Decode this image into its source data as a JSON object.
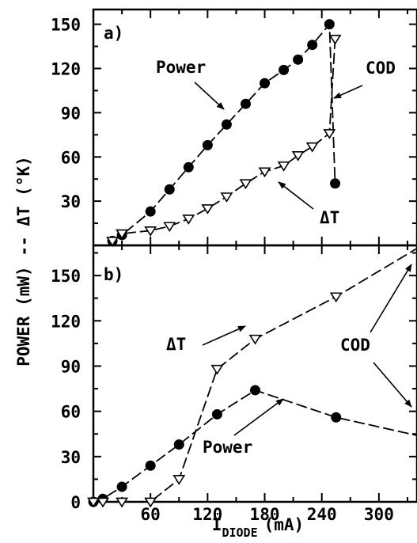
{
  "chart_data": [
    {
      "panel_label": "a)",
      "type": "line",
      "ylim": [
        0,
        160
      ],
      "xlim": [
        0,
        340
      ],
      "yticks": [
        30,
        60,
        90,
        120,
        150
      ],
      "series": [
        {
          "name": "Power",
          "marker": "filled-circle",
          "x": [
            20,
            30,
            60,
            80,
            100,
            120,
            140,
            160,
            180,
            200,
            215,
            230,
            248,
            254
          ],
          "y": [
            3,
            7,
            23,
            38,
            53,
            68,
            82,
            96,
            110,
            119,
            126,
            136,
            150,
            42
          ]
        },
        {
          "name": "ΔT",
          "marker": "open-triangle",
          "x": [
            20,
            30,
            60,
            80,
            100,
            120,
            140,
            160,
            180,
            200,
            215,
            230,
            248,
            254
          ],
          "y": [
            3,
            8,
            10,
            13,
            18,
            25,
            33,
            42,
            50,
            54,
            61,
            67,
            76,
            140
          ]
        }
      ],
      "annotations": [
        "Power",
        "COD",
        "ΔT"
      ]
    },
    {
      "panel_label": "b)",
      "type": "line",
      "ylim": [
        0,
        170
      ],
      "xlim": [
        0,
        340
      ],
      "yticks": [
        0,
        30,
        60,
        90,
        120,
        150
      ],
      "xticks": [
        60,
        120,
        180,
        240,
        300
      ],
      "series": [
        {
          "name": "Power",
          "marker": "filled-circle",
          "x": [
            0,
            10,
            30,
            60,
            90,
            130,
            170,
            255,
            340
          ],
          "y": [
            0,
            2,
            10,
            24,
            38,
            58,
            74,
            56,
            44
          ]
        },
        {
          "name": "ΔT",
          "marker": "open-triangle",
          "x": [
            0,
            10,
            30,
            60,
            90,
            130,
            170,
            255,
            340
          ],
          "y": [
            0,
            0,
            0,
            0,
            15,
            88,
            108,
            136,
            168
          ]
        }
      ],
      "annotations": [
        "ΔT",
        "COD",
        "Power"
      ]
    }
  ],
  "ylabel": "POWER (mW) -- ΔT (°K)",
  "xlabel": {
    "main": "I",
    "subscript": "DIODE",
    "unit": "(mA)"
  },
  "colors": {
    "ink": "#000000",
    "background": "#ffffff"
  }
}
